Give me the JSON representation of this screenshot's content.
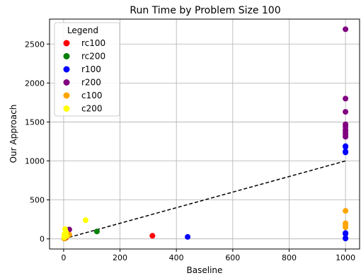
{
  "chart_data": {
    "type": "scatter",
    "title": "Run Time by Problem Size 100",
    "xlabel": "Baseline",
    "ylabel": "Our Approach",
    "xlim": [
      -50,
      1050
    ],
    "ylim": [
      -130,
      2820
    ],
    "xticks": [
      0,
      200,
      400,
      600,
      800,
      1000
    ],
    "yticks": [
      0,
      500,
      1000,
      1500,
      2000,
      2500
    ],
    "grid": true,
    "legend": {
      "title": "Legend",
      "placement": "top-left"
    },
    "reference_line": {
      "style": "dashed",
      "color": "#000000",
      "points": [
        [
          0,
          0
        ],
        [
          1000,
          1000
        ]
      ]
    },
    "series": [
      {
        "name": "rc100",
        "color": "#ff0000",
        "points": [
          [
            315,
            40
          ],
          [
            5,
            10
          ],
          [
            8,
            15
          ]
        ]
      },
      {
        "name": "rc200",
        "color": "#008000",
        "points": [
          [
            118,
            95
          ],
          [
            3,
            5
          ]
        ]
      },
      {
        "name": "r100",
        "color": "#0000ff",
        "points": [
          [
            440,
            25
          ],
          [
            1000,
            1190
          ],
          [
            1000,
            1180
          ],
          [
            1000,
            1120
          ],
          [
            1000,
            1110
          ],
          [
            1000,
            75
          ],
          [
            1000,
            65
          ],
          [
            1000,
            10
          ],
          [
            1000,
            5
          ]
        ]
      },
      {
        "name": "r200",
        "color": "#800080",
        "points": [
          [
            1000,
            2690
          ],
          [
            1000,
            1800
          ],
          [
            1000,
            1630
          ],
          [
            1000,
            1470
          ],
          [
            1000,
            1440
          ],
          [
            1000,
            1400
          ],
          [
            1000,
            1370
          ],
          [
            1000,
            1340
          ],
          [
            1000,
            1310
          ],
          [
            20,
            120
          ],
          [
            10,
            80
          ]
        ]
      },
      {
        "name": "c100",
        "color": "#ffa500",
        "points": [
          [
            1000,
            360
          ],
          [
            1000,
            200
          ],
          [
            1000,
            180
          ],
          [
            1000,
            150
          ],
          [
            20,
            55
          ],
          [
            12,
            35
          ],
          [
            5,
            20
          ],
          [
            2,
            5
          ]
        ]
      },
      {
        "name": "c200",
        "color": "#ffff00",
        "points": [
          [
            78,
            240
          ],
          [
            5,
            125
          ],
          [
            8,
            90
          ],
          [
            3,
            60
          ],
          [
            10,
            40
          ],
          [
            2,
            20
          ]
        ]
      }
    ]
  }
}
